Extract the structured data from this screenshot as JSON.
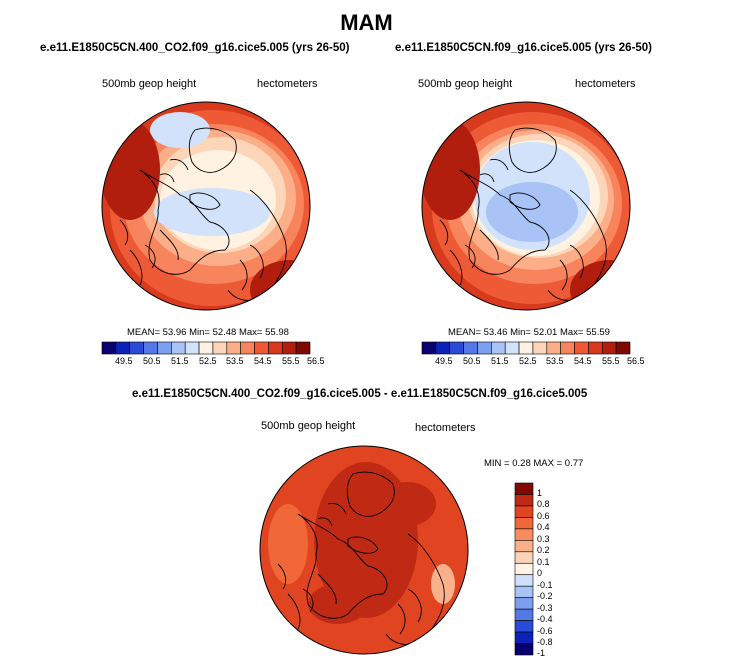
{
  "title": "MAM",
  "panels": [
    {
      "subtitle": "e.e11.E1850C5CN.400_CO2.f09_g16.cice5.005 (yrs 26-50)",
      "left_label": "500mb geop height",
      "right_label": "hectometers",
      "stats": {
        "mean_label": "MEAN=",
        "mean": "53.96",
        "min_label": "Min=",
        "min": "52.48",
        "max_label": "Max=",
        "max": "55.98"
      },
      "colorbar_ticks": [
        "49.5",
        "50.5",
        "51.5",
        "52.5",
        "53.5",
        "54.5",
        "55.5",
        "56.5"
      ]
    },
    {
      "subtitle": "e.e11.E1850C5CN.f09_g16.cice5.005 (yrs 26-50)",
      "left_label": "500mb geop height",
      "right_label": "hectometers",
      "stats": {
        "mean_label": "MEAN=",
        "mean": "53.46",
        "min_label": "Min=",
        "min": "52.01",
        "max_label": "Max=",
        "max": "55.59"
      },
      "colorbar_ticks": [
        "49.5",
        "50.5",
        "51.5",
        "52.5",
        "53.5",
        "54.5",
        "55.5",
        "56.5"
      ]
    }
  ],
  "diff": {
    "subtitle": "e.e11.E1850C5CN.400_CO2.f09_g16.cice5.005 - e.e11.E1850C5CN.f09_g16.cice5.005",
    "left_label": "500mb geop height",
    "right_label": "hectometers",
    "stats": "MIN =  0.28 MAX =  0.77",
    "colorbar_ticks": [
      "1",
      "0.8",
      "0.6",
      "0.4",
      "0.3",
      "0.2",
      "0.1",
      "0",
      "-0.1",
      "-0.2",
      "-0.3",
      "-0.4",
      "-0.6",
      "-0.8",
      "-1"
    ]
  },
  "colors": {
    "abs_scale": [
      "#08006f",
      "#0a22b8",
      "#2a4bd8",
      "#5479e6",
      "#7d9ff0",
      "#a9c3f6",
      "#d2e2fb",
      "#fff2e0",
      "#fdd5b8",
      "#fbae88",
      "#f7845c",
      "#ee5a35",
      "#d83a1e",
      "#b11e0e",
      "#7f0a05"
    ],
    "diff_scale": [
      "#7f0a05",
      "#c02a14",
      "#e04420",
      "#f06838",
      "#f88c5e",
      "#fbb08c",
      "#fcd3b8",
      "#fff3e6",
      "#cfe0fb",
      "#a8c3f5",
      "#7d9ff0",
      "#5479e6",
      "#2a4bd8",
      "#0a22b8",
      "#08006f"
    ]
  }
}
